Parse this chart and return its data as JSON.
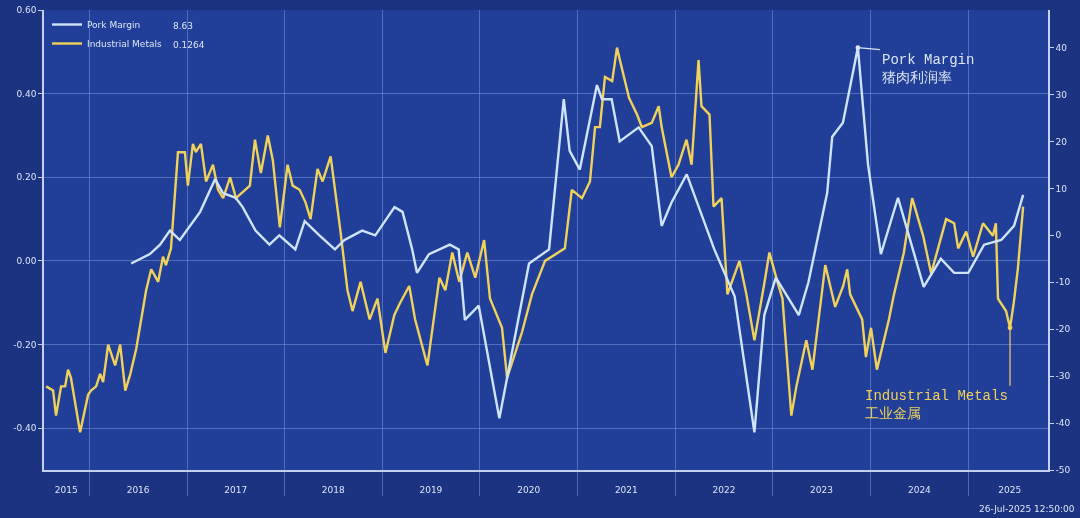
{
  "chart_data": {
    "type": "line",
    "series": [
      {
        "name": "Pork Margin",
        "color": "#cfe4fa",
        "axis": "y2",
        "x": [
          "2016-06-06",
          "2016-08-15",
          "2016-09-22",
          "2016-10-29",
          "2016-12-05",
          "2017-02-19",
          "2017-04-16",
          "2017-05-15",
          "2017-07-02",
          "2017-07-28",
          "2017-09-14",
          "2017-11-05",
          "2017-12-12",
          "2018-02-10",
          "2018-03-17",
          "2018-05-11",
          "2018-07-08",
          "2018-08-13",
          "2018-10-18",
          "2018-12-06",
          "2019-02-16",
          "2019-03-18",
          "2019-04-23",
          "2019-05-11",
          "2019-06-25",
          "2019-09-11",
          "2019-10-14",
          "2019-11-06",
          "2019-12-28",
          "2020-03-14",
          "2020-07-03",
          "2020-09-16",
          "2020-11-10",
          "2020-12-02",
          "2021-01-09",
          "2021-03-14",
          "2021-04-02",
          "2021-05-08",
          "2021-06-07",
          "2021-08-17",
          "2021-10-05",
          "2021-11-11",
          "2021-12-18",
          "2022-02-13",
          "2022-05-27",
          "2022-08-11",
          "2022-10-24",
          "2022-11-30",
          "2023-01-12",
          "2023-04-08",
          "2023-05-14",
          "2023-07-23",
          "2023-08-11",
          "2023-09-20",
          "2023-11-15",
          "2023-12-23",
          "2024-02-09",
          "2024-04-13",
          "2024-07-18",
          "2024-09-20",
          "2024-11-09",
          "2025-01-01",
          "2025-03-01",
          "2025-05-04",
          "2025-06-21",
          "2025-07-25"
        ],
        "values": [
          -6,
          -4,
          -2,
          1,
          -1,
          5,
          12,
          9,
          8,
          6,
          1,
          -2,
          0,
          -3,
          3,
          0,
          -3,
          -1,
          1,
          0,
          6,
          5,
          -3,
          -8,
          -4,
          -2,
          -3,
          -18,
          -15,
          -39,
          -6,
          -3,
          29,
          18,
          14,
          32,
          29,
          29,
          20,
          23,
          19,
          2,
          7,
          13,
          -3,
          -13,
          -42,
          -17,
          -9,
          -17,
          -10,
          9,
          21,
          24,
          40,
          15,
          -4,
          8,
          -11,
          -5,
          -8,
          -8,
          -2,
          -1,
          2,
          8.6
        ]
      },
      {
        "name": "Industrial Metals",
        "color": "#f0d15a",
        "x": [
          "2015-07-24",
          "2015-08-19",
          "2015-08-30",
          "2015-09-18",
          "2015-10-03",
          "2015-10-14",
          "2015-10-25",
          "2015-11-28",
          "2015-12-28",
          "2016-01-08",
          "2016-01-27",
          "2016-02-11",
          "2016-02-22",
          "2016-03-12",
          "2016-04-07",
          "2016-04-26",
          "2016-05-15",
          "2016-06-03",
          "2016-06-25",
          "2016-08-01",
          "2016-08-20",
          "2016-09-15",
          "2016-10-03",
          "2016-10-14",
          "2016-11-02",
          "2016-11-28",
          "2016-12-24",
          "2017-01-04",
          "2017-01-23",
          "2017-02-03",
          "2017-02-22",
          "2017-03-13",
          "2017-04-08",
          "2017-04-27",
          "2017-05-16",
          "2017-06-11",
          "2017-07-03",
          "2017-08-24",
          "2017-09-12",
          "2017-10-04",
          "2017-10-30",
          "2017-11-18",
          "2017-12-14",
          "2018-01-12",
          "2018-01-31",
          "2018-02-26",
          "2018-03-20",
          "2018-04-08",
          "2018-05-04",
          "2018-05-23",
          "2018-06-22",
          "2018-07-29",
          "2018-08-24",
          "2018-09-12",
          "2018-10-12",
          "2018-11-15",
          "2018-12-14",
          "2019-01-13",
          "2019-02-15",
          "2019-03-09",
          "2019-04-12",
          "2019-05-04",
          "2019-06-19",
          "2019-08-03",
          "2019-08-25",
          "2019-09-20",
          "2019-10-16",
          "2019-11-15",
          "2019-12-15",
          "2020-01-17",
          "2020-02-08",
          "2020-03-24",
          "2020-04-12",
          "2020-06-07",
          "2020-07-14",
          "2020-09-01",
          "2020-11-14",
          "2020-12-10",
          "2021-01-17",
          "2021-02-16",
          "2021-03-07",
          "2021-03-25",
          "2021-04-13",
          "2021-05-10",
          "2021-05-28",
          "2021-06-08",
          "2021-07-12",
          "2021-08-11",
          "2021-08-29",
          "2021-10-05",
          "2021-10-31",
          "2021-11-11",
          "2021-12-18",
          "2022-01-13",
          "2022-02-12",
          "2022-03-03",
          "2022-03-29",
          "2022-04-09",
          "2022-05-09",
          "2022-05-24",
          "2022-06-23",
          "2022-07-15",
          "2022-08-29",
          "2022-09-24",
          "2022-10-24",
          "2022-12-01",
          "2022-12-19",
          "2023-01-18",
          "2023-02-06",
          "2023-03-11",
          "2023-03-30",
          "2023-05-06",
          "2023-05-29",
          "2023-07-16",
          "2023-08-22",
          "2023-09-21",
          "2023-10-06",
          "2023-10-17",
          "2023-12-01",
          "2023-12-15",
          "2024-01-03",
          "2024-01-25",
          "2024-03-10",
          "2024-03-29",
          "2024-05-05",
          "2024-06-05",
          "2024-07-16",
          "2024-08-15",
          "2024-10-10",
          "2024-11-09",
          "2024-11-24",
          "2024-12-24",
          "2025-01-19",
          "2025-02-25",
          "2025-04-03",
          "2025-04-14",
          "2025-04-22",
          "2025-05-22",
          "2025-06-06",
          "2025-06-20",
          "2025-07-05",
          "2025-07-25"
        ],
        "values": [
          -0.3,
          -0.31,
          -0.37,
          -0.3,
          -0.3,
          -0.26,
          -0.28,
          -0.41,
          -0.32,
          -0.31,
          -0.3,
          -0.27,
          -0.29,
          -0.2,
          -0.25,
          -0.2,
          -0.31,
          -0.27,
          -0.21,
          -0.07,
          -0.02,
          -0.05,
          0.01,
          -0.01,
          0.03,
          0.26,
          0.26,
          0.18,
          0.28,
          0.26,
          0.28,
          0.19,
          0.23,
          0.17,
          0.15,
          0.2,
          0.15,
          0.18,
          0.29,
          0.21,
          0.3,
          0.24,
          0.08,
          0.23,
          0.18,
          0.17,
          0.14,
          0.1,
          0.22,
          0.19,
          0.25,
          0.07,
          -0.07,
          -0.12,
          -0.05,
          -0.14,
          -0.09,
          -0.22,
          -0.13,
          -0.1,
          -0.06,
          -0.14,
          -0.25,
          -0.04,
          -0.07,
          0.02,
          -0.05,
          0.02,
          -0.04,
          0.05,
          -0.09,
          -0.16,
          -0.28,
          -0.17,
          -0.08,
          0.0,
          0.03,
          0.17,
          0.15,
          0.19,
          0.32,
          0.32,
          0.44,
          0.43,
          0.51,
          0.48,
          0.39,
          0.35,
          0.32,
          0.33,
          0.37,
          0.32,
          0.2,
          0.23,
          0.29,
          0.23,
          0.48,
          0.37,
          0.35,
          0.13,
          0.15,
          -0.08,
          0.0,
          -0.08,
          -0.19,
          -0.05,
          0.02,
          -0.05,
          -0.09,
          -0.37,
          -0.3,
          -0.19,
          -0.26,
          -0.01,
          -0.11,
          -0.06,
          -0.02,
          -0.08,
          -0.14,
          -0.23,
          -0.16,
          -0.26,
          -0.14,
          -0.08,
          0.02,
          0.15,
          0.06,
          -0.03,
          0.1,
          0.09,
          0.03,
          0.07,
          0.01,
          0.09,
          0.06,
          0.09,
          -0.09,
          -0.12,
          -0.16,
          -0.1,
          -0.02,
          0.13
        ]
      }
    ],
    "xlim": [
      "2015-07-16",
      "2025-10-26"
    ],
    "xticks": [
      {
        "value": "2015-10-07",
        "label": "2015"
      },
      {
        "value": "2016-01-01",
        "label": null
      },
      {
        "value": "2016-07-02",
        "label": "2016"
      },
      {
        "value": "2017-01-01",
        "label": null
      },
      {
        "value": "2017-07-02",
        "label": "2017"
      },
      {
        "value": "2018-01-01",
        "label": null
      },
      {
        "value": "2018-07-02",
        "label": "2018"
      },
      {
        "value": "2019-01-01",
        "label": null
      },
      {
        "value": "2019-07-02",
        "label": "2019"
      },
      {
        "value": "2020-01-01",
        "label": null
      },
      {
        "value": "2020-07-02",
        "label": "2020"
      },
      {
        "value": "2021-01-01",
        "label": null
      },
      {
        "value": "2021-07-02",
        "label": "2021"
      },
      {
        "value": "2022-01-01",
        "label": null
      },
      {
        "value": "2022-07-02",
        "label": "2022"
      },
      {
        "value": "2023-01-01",
        "label": null
      },
      {
        "value": "2023-07-02",
        "label": "2023"
      },
      {
        "value": "2024-01-01",
        "label": null
      },
      {
        "value": "2024-07-02",
        "label": "2024"
      },
      {
        "value": "2025-01-01",
        "label": null
      },
      {
        "value": "2025-06-05",
        "label": "2025"
      }
    ],
    "ylim": [
      -0.5,
      0.6
    ],
    "yticks": [
      {
        "value": 0.6,
        "label": "0.60"
      },
      {
        "value": 0.4,
        "label": "0.40"
      },
      {
        "value": 0.2,
        "label": "0.20"
      },
      {
        "value": 0,
        "label": "0.00"
      },
      {
        "value": -0.2,
        "label": "-0.20"
      },
      {
        "value": -0.4,
        "label": "-0.40"
      }
    ],
    "y2lim": [
      -50,
      48
    ],
    "y2ticks": [
      40,
      30,
      20,
      10,
      0,
      -10,
      -20,
      -30,
      -40,
      -50
    ],
    "grid": true,
    "legend": "top left",
    "annotations": [
      "8.63",
      "0.1264",
      {
        "text": "Pork Margin\n猪肉利润率",
        "x": "2023-11-15",
        "y": 0.51
      },
      {
        "text": "Industrial Metals\n工业金属",
        "x": "2025-06-06",
        "y": -0.16
      },
      "26-Jul-2025 12:50:00"
    ]
  }
}
